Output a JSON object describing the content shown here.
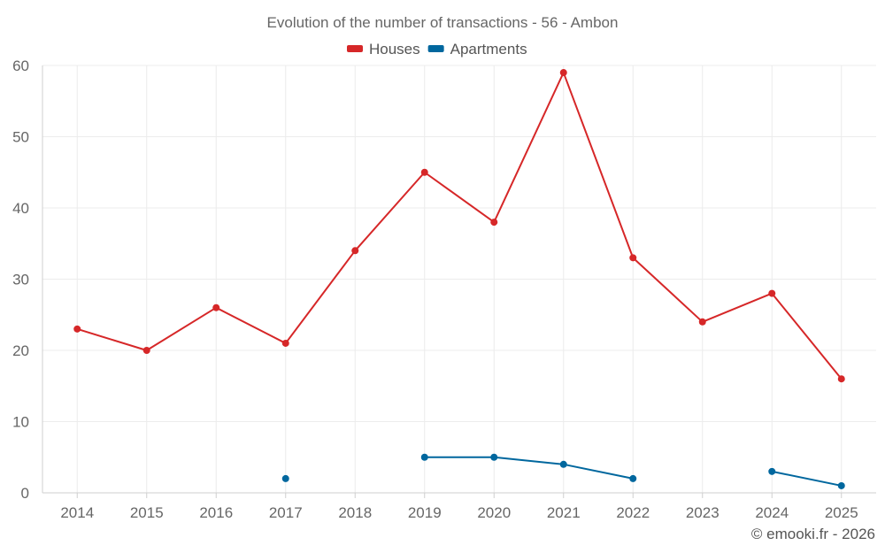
{
  "chart_data": {
    "type": "line",
    "title": "Evolution of the number of transactions - 56 - Ambon",
    "categories": [
      "2014",
      "2015",
      "2016",
      "2017",
      "2018",
      "2019",
      "2020",
      "2021",
      "2022",
      "2023",
      "2024",
      "2025"
    ],
    "series": [
      {
        "name": "Houses",
        "color": "#d62728",
        "values": [
          23,
          20,
          26,
          21,
          34,
          45,
          38,
          59,
          33,
          24,
          28,
          16
        ]
      },
      {
        "name": "Apartments",
        "color": "#00679e",
        "values": [
          null,
          null,
          null,
          2,
          null,
          5,
          5,
          4,
          2,
          null,
          3,
          1
        ]
      }
    ],
    "ylim": [
      0,
      60
    ],
    "yticks": [
      0,
      10,
      20,
      30,
      40,
      50,
      60
    ],
    "xlabel": "",
    "ylabel": "",
    "grid": true,
    "legend_position": "top-center"
  },
  "credit": "© emooki.fr - 2026"
}
